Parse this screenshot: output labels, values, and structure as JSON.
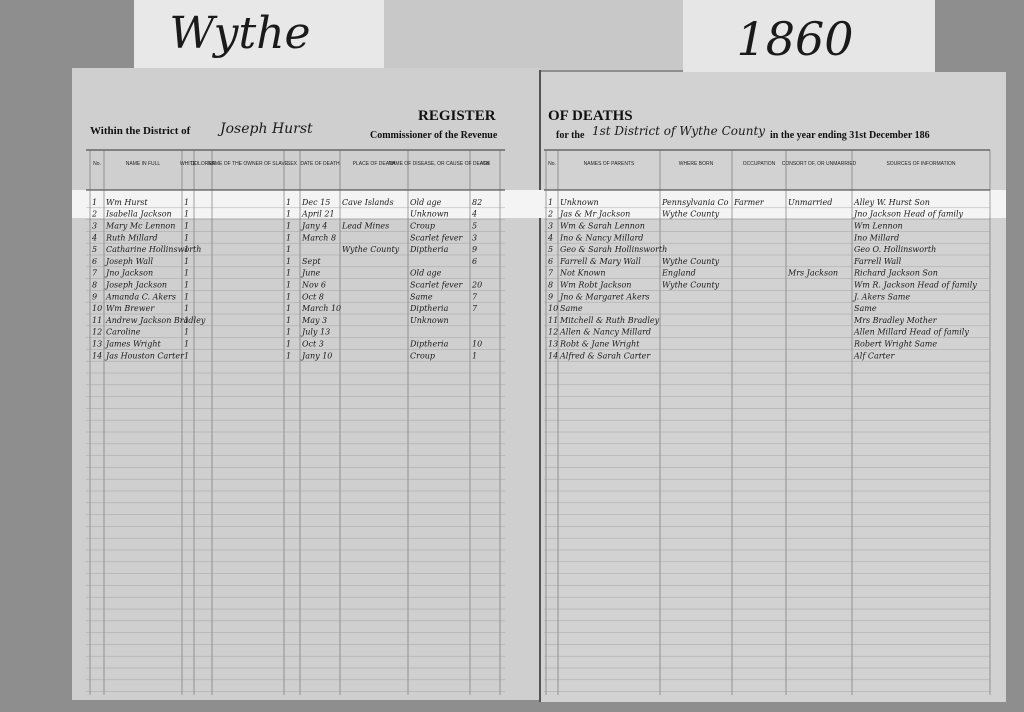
{
  "labels": {
    "county": "Wythe",
    "year": "1860"
  },
  "left_page": {
    "header": {
      "prefix": "Within the District of",
      "commissioner": "Joseph Hurst",
      "suffix": "Commissioner of the Revenue",
      "title": "REGISTER"
    },
    "columns": [
      "No.",
      "NAME IN FULL",
      "WHITE",
      "COLORED",
      "NAME OF THE OWNER OF SLAVE",
      "SEX",
      "DATE OF DEATH",
      "PLACE OF DEATH",
      "NAME OF DISEASE, OR CAUSE OF DEATH",
      "AGE"
    ],
    "rows": [
      [
        "1",
        "Wm Hurst",
        "1",
        "",
        "",
        "1",
        "Dec 15",
        "Cave Islands",
        "Old age",
        "82"
      ],
      [
        "2",
        "Isabella Jackson",
        "1",
        "",
        "",
        "1",
        "April 21",
        "",
        "Unknown",
        "4"
      ],
      [
        "3",
        "Mary Mc Lennon",
        "1",
        "",
        "",
        "1",
        "Jany 4",
        "Lead Mines",
        "Croup",
        "5"
      ],
      [
        "4",
        "Ruth Millard",
        "1",
        "",
        "",
        "1",
        "March 8",
        "",
        "Scarlet fever",
        "3"
      ],
      [
        "5",
        "Catharine Hollinsworth",
        "1",
        "",
        "",
        "1",
        "",
        "Wythe County",
        "Diptheria",
        "9"
      ],
      [
        "6",
        "Joseph Wall",
        "1",
        "",
        "",
        "1",
        "Sept",
        "",
        "",
        "6"
      ],
      [
        "7",
        "Jno Jackson",
        "1",
        "",
        "",
        "1",
        "June",
        "",
        "Old age",
        ""
      ],
      [
        "8",
        "Joseph Jackson",
        "1",
        "",
        "",
        "1",
        "Nov 6",
        "",
        "Scarlet fever",
        "20"
      ],
      [
        "9",
        "Amanda C. Akers",
        "1",
        "",
        "",
        "1",
        "Oct 8",
        "",
        "Same",
        "7"
      ],
      [
        "10",
        "Wm Brewer",
        "1",
        "",
        "",
        "1",
        "March 10",
        "",
        "Diptheria",
        "7"
      ],
      [
        "11",
        "Andrew Jackson Bradley",
        "1",
        "",
        "",
        "1",
        "May 3",
        "",
        "Unknown",
        ""
      ],
      [
        "12",
        "Caroline",
        "1",
        "",
        "",
        "1",
        "July 13",
        "",
        "",
        ""
      ],
      [
        "13",
        "James Wright",
        "1",
        "",
        "",
        "1",
        "Oct 3",
        "",
        "Diptheria",
        "10"
      ],
      [
        "14",
        "Jas Houston Carter",
        "1",
        "",
        "",
        "1",
        "Jany 10",
        "",
        "Croup",
        "1"
      ]
    ]
  },
  "right_page": {
    "header": {
      "title": "OF DEATHS",
      "prefix": "for the",
      "district": "1st District of Wythe County",
      "suffix": "in the year ending 31st December 186"
    },
    "columns": [
      "No.",
      "NAMES OF PARENTS",
      "WHERE BORN",
      "OCCUPATION",
      "CONSORT OF, OR UNMARRIED",
      "SOURCES OF INFORMATION"
    ],
    "rows": [
      [
        "1",
        "Unknown",
        "Pennsylvania Co",
        "Farmer",
        "Unmarried",
        "Alley W. Hurst  Son"
      ],
      [
        "2",
        "Jas & Mr Jackson",
        "Wythe County",
        "",
        "",
        "Jno Jackson  Head of family"
      ],
      [
        "3",
        "Wm & Sarah Lennon",
        "",
        "",
        "",
        "Wm Lennon"
      ],
      [
        "4",
        "Ino & Nancy Millard",
        "",
        "",
        "",
        "Ino Millard"
      ],
      [
        "5",
        "Geo & Sarah Hollinsworth",
        "",
        "",
        "",
        "Geo O. Hollinsworth"
      ],
      [
        "6",
        "Farrell & Mary Wall",
        "Wythe County",
        "",
        "",
        "Farrell Wall"
      ],
      [
        "7",
        "Not Known",
        "England",
        "",
        "Mrs Jackson",
        "Richard Jackson  Son"
      ],
      [
        "8",
        "Wm Robt Jackson",
        "Wythe County",
        "",
        "",
        "Wm R. Jackson  Head of family"
      ],
      [
        "9",
        "Jno & Margaret Akers",
        "",
        "",
        "",
        "J. Akers  Same"
      ],
      [
        "10",
        "Same",
        "",
        "",
        "",
        "Same"
      ],
      [
        "11",
        "Mitchell & Ruth Bradley",
        "",
        "",
        "",
        "Mrs Bradley  Mother"
      ],
      [
        "12",
        "Allen & Nancy Millard",
        "",
        "",
        "",
        "Allen Millard  Head of family"
      ],
      [
        "13",
        "Robt & Jane Wright",
        "",
        "",
        "",
        "Robert Wright  Same"
      ],
      [
        "14",
        "Alfred & Sarah Carter",
        "",
        "",
        "",
        "Alf Carter"
      ]
    ]
  }
}
